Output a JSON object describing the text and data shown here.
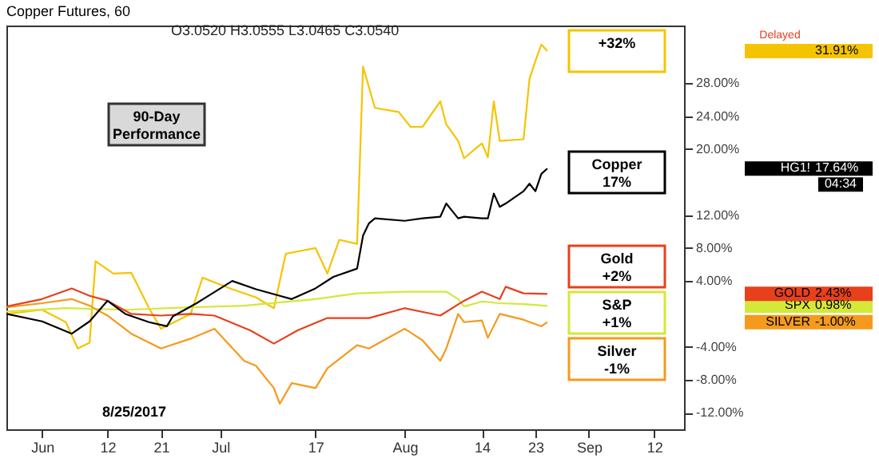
{
  "chart_data": {
    "type": "line",
    "title": "Copper Futures, 60",
    "xlim": [
      "2017-05-26",
      "2017-09-17"
    ],
    "xticks": [
      {
        "value": "2017-06-01",
        "label": "Jun"
      },
      {
        "value": "2017-06-12",
        "label": "12"
      },
      {
        "value": "2017-06-21",
        "label": "21"
      },
      {
        "value": "2017-07-01",
        "label": "Jul"
      },
      {
        "value": "2017-07-17",
        "label": "17"
      },
      {
        "value": "2017-08-01",
        "label": "Aug"
      },
      {
        "value": "2017-08-14",
        "label": "14"
      },
      {
        "value": "2017-08-23",
        "label": "23"
      },
      {
        "value": "2017-09-01",
        "label": "Sep"
      },
      {
        "value": "2017-09-12",
        "label": "12"
      }
    ],
    "ylim": [
      -14,
      35
    ],
    "yticks": [
      {
        "value": -12,
        "label": "-12.00%"
      },
      {
        "value": -8,
        "label": "-8.00%"
      },
      {
        "value": -4,
        "label": "-4.00%"
      },
      {
        "value": 4,
        "label": "4.00%"
      },
      {
        "value": 8,
        "label": "8.00%"
      },
      {
        "value": 12,
        "label": "12.00%"
      },
      {
        "value": 20,
        "label": "20.00%"
      },
      {
        "value": 24,
        "label": "24.00%"
      },
      {
        "value": 28,
        "label": "28.00%"
      }
    ],
    "grid": false,
    "legend": false,
    "marker": "none",
    "line_style": "solid",
    "series": [
      {
        "color": "#f5c400",
        "x": [
          "2017-05-26",
          "2017-06-01",
          "2017-06-05",
          "2017-06-07",
          "2017-06-09",
          "2017-06-10",
          "2017-06-13",
          "2017-06-16",
          "2017-06-19",
          "2017-06-21",
          "2017-06-26",
          "2017-06-28",
          "2017-07-03",
          "2017-07-07",
          "2017-07-10",
          "2017-07-12",
          "2017-07-17",
          "2017-07-19",
          "2017-07-21",
          "2017-07-24",
          "2017-07-25",
          "2017-07-27",
          "2017-07-31",
          "2017-08-02",
          "2017-08-04",
          "2017-08-07",
          "2017-08-08",
          "2017-08-10",
          "2017-08-11",
          "2017-08-14",
          "2017-08-15",
          "2017-08-16",
          "2017-08-17",
          "2017-08-21",
          "2017-08-22",
          "2017-08-23",
          "2017-08-24",
          "2017-08-25"
        ],
        "values": [
          0,
          0.5,
          -1,
          -4.2,
          -3.5,
          6.4,
          4.9,
          5,
          0.7,
          -1.8,
          0,
          4.4,
          3,
          2,
          0.7,
          7.3,
          8,
          4.9,
          9,
          8.5,
          30,
          25,
          24.5,
          22.7,
          22.7,
          25.8,
          23,
          21,
          18.9,
          20.7,
          19,
          25.8,
          21,
          21.2,
          28.5,
          30.7,
          32.7,
          31.91
        ]
      },
      {
        "name": "SPX",
        "color": "#d4e83a",
        "x": [
          "2017-05-26",
          "2017-06-05",
          "2017-06-15",
          "2017-06-26",
          "2017-07-05",
          "2017-07-17",
          "2017-07-24",
          "2017-08-01",
          "2017-08-08",
          "2017-08-10",
          "2017-08-11",
          "2017-08-14",
          "2017-08-17",
          "2017-08-21",
          "2017-08-25"
        ],
        "values": [
          0.3,
          0.7,
          0.5,
          0.8,
          1,
          1.8,
          2.5,
          2.7,
          2.7,
          1.8,
          0.9,
          1.5,
          1.3,
          1.2,
          0.98
        ]
      },
      {
        "name": "SILVER",
        "color": "#f59a1e",
        "x": [
          "2017-05-26",
          "2017-06-01",
          "2017-06-06",
          "2017-06-09",
          "2017-06-12",
          "2017-06-16",
          "2017-06-21",
          "2017-06-26",
          "2017-06-30",
          "2017-07-05",
          "2017-07-07",
          "2017-07-10",
          "2017-07-11",
          "2017-07-13",
          "2017-07-17",
          "2017-07-19",
          "2017-07-24",
          "2017-07-26",
          "2017-08-01",
          "2017-08-04",
          "2017-08-07",
          "2017-08-08",
          "2017-08-10",
          "2017-08-11",
          "2017-08-14",
          "2017-08-15",
          "2017-08-17",
          "2017-08-21",
          "2017-08-24",
          "2017-08-25"
        ],
        "values": [
          0.8,
          1.3,
          1.8,
          1,
          -0.2,
          -2.4,
          -4.2,
          -3,
          -1.8,
          -5.7,
          -6.3,
          -9,
          -10.9,
          -8.4,
          -9,
          -6.6,
          -3.8,
          -4.2,
          -1.8,
          -3.2,
          -5.7,
          -4.2,
          0,
          -1,
          -0.8,
          -2.9,
          0,
          -0.7,
          -1.5,
          -1
        ]
      },
      {
        "name": "GOLD",
        "color": "#e8401c",
        "x": [
          "2017-05-26",
          "2017-06-01",
          "2017-06-06",
          "2017-06-09",
          "2017-06-12",
          "2017-06-16",
          "2017-06-21",
          "2017-06-26",
          "2017-06-30",
          "2017-07-06",
          "2017-07-10",
          "2017-07-14",
          "2017-07-19",
          "2017-07-24",
          "2017-07-26",
          "2017-08-01",
          "2017-08-07",
          "2017-08-11",
          "2017-08-14",
          "2017-08-17",
          "2017-08-18",
          "2017-08-21",
          "2017-08-25"
        ],
        "values": [
          0.9,
          1.8,
          3.1,
          2.2,
          1.6,
          0,
          -0.2,
          0,
          -0.2,
          -2,
          -3.6,
          -2,
          -0.5,
          -0.5,
          -0.5,
          0.7,
          -0.2,
          1.6,
          2.7,
          1.8,
          3.3,
          2.5,
          2.43
        ]
      },
      {
        "name": "HG1!",
        "color": "#000000",
        "x": [
          "2017-05-26",
          "2017-06-01",
          "2017-06-06",
          "2017-06-09",
          "2017-06-12",
          "2017-06-15",
          "2017-06-19",
          "2017-06-22",
          "2017-06-23",
          "2017-06-27",
          "2017-07-03",
          "2017-07-07",
          "2017-07-11",
          "2017-07-13",
          "2017-07-17",
          "2017-07-20",
          "2017-07-24",
          "2017-07-25",
          "2017-07-26",
          "2017-07-27",
          "2017-08-01",
          "2017-08-04",
          "2017-08-07",
          "2017-08-08",
          "2017-08-09",
          "2017-08-10",
          "2017-08-11",
          "2017-08-14",
          "2017-08-15",
          "2017-08-16",
          "2017-08-17",
          "2017-08-18",
          "2017-08-21",
          "2017-08-22",
          "2017-08-23",
          "2017-08-24",
          "2017-08-25"
        ],
        "values": [
          0,
          -0.9,
          -2.4,
          -0.9,
          1.6,
          0,
          -1,
          -1.5,
          -0.3,
          1.3,
          4,
          3,
          2.2,
          1.8,
          3.1,
          4.5,
          5.5,
          9.5,
          11,
          11.6,
          11.3,
          11.6,
          11.8,
          13.4,
          12.5,
          11.6,
          11.8,
          11.6,
          11.6,
          14.6,
          13,
          13.4,
          14.9,
          15.8,
          14.9,
          17,
          17.64
        ]
      }
    ],
    "annotations": [
      "O3.0520  H3.0555  L3.0465  C3.0540",
      "Delayed",
      "90-Day\nPerformance",
      "+32%",
      "Copper\n17%",
      "Gold\n+2%",
      "S&P\n+1%",
      "Silver\n-1%",
      "8/25/2017",
      "04:34",
      "31.91%",
      "17.64%",
      "2.43%",
      "0.98%",
      "-1.00%"
    ]
  }
}
